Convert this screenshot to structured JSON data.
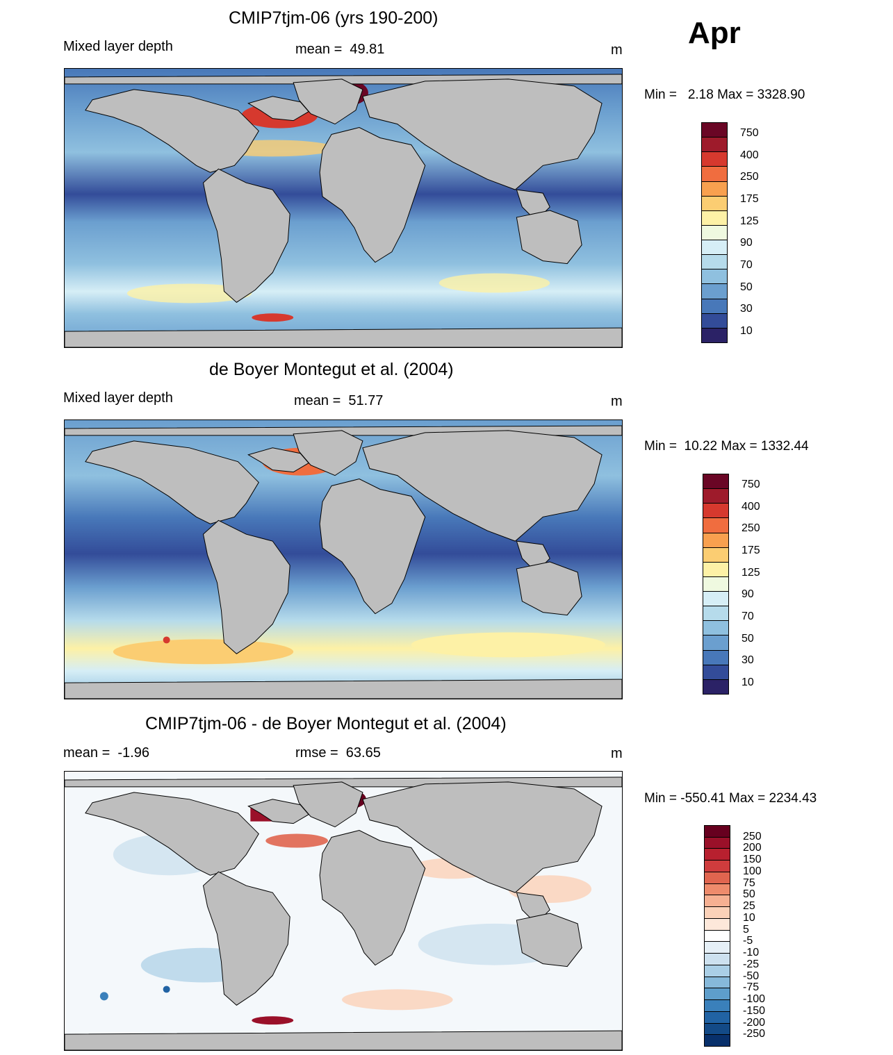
{
  "month": "Apr",
  "panels": [
    {
      "title": "CMIP7tjm-06 (yrs 190-200)",
      "left_label": "Mixed layer depth",
      "center_label": "mean =  49.81",
      "units": "m",
      "minmax": "Min =   2.18 Max = 3328.90",
      "colorbar": {
        "colors": [
          "#6a0625",
          "#9e1b2b",
          "#d6392e",
          "#f06d3f",
          "#f8a04f",
          "#fbcd72",
          "#fdf1a6",
          "#eff9e0",
          "#d6eef6",
          "#b6dbeb",
          "#8fc0df",
          "#6b9fcf",
          "#4878b9",
          "#334c99",
          "#2b2266"
        ],
        "labels": [
          "750",
          "400",
          "250",
          "175",
          "125",
          "90",
          "70",
          "50",
          "30",
          "10"
        ]
      }
    },
    {
      "title": "de Boyer Montegut et al. (2004)",
      "left_label": "Mixed layer depth",
      "center_label": "mean =  51.77",
      "units": "m",
      "minmax": "Min =  10.22 Max = 1332.44",
      "colorbar": {
        "colors": [
          "#6a0625",
          "#9e1b2b",
          "#d6392e",
          "#f06d3f",
          "#f8a04f",
          "#fbcd72",
          "#fdf1a6",
          "#eff9e0",
          "#d6eef6",
          "#b6dbeb",
          "#8fc0df",
          "#6b9fcf",
          "#4878b9",
          "#334c99",
          "#2b2266"
        ],
        "labels": [
          "750",
          "400",
          "250",
          "175",
          "125",
          "90",
          "70",
          "50",
          "30",
          "10"
        ]
      }
    },
    {
      "title": "CMIP7tjm-06 - de Boyer Montegut et al. (2004)",
      "left_label": "mean =  -1.96",
      "center_label": "rmse =  63.65",
      "units": "m",
      "minmax": "Min = -550.41 Max = 2234.43",
      "colorbar": {
        "colors": [
          "#67001f",
          "#9a1029",
          "#b8202f",
          "#cf3c3d",
          "#e0654f",
          "#ee8b6c",
          "#f6b092",
          "#fbd1b8",
          "#fde8da",
          "#ffffff",
          "#e6f0f7",
          "#cde1ef",
          "#aacfe6",
          "#86b9da",
          "#5e9ecb",
          "#3a80bb",
          "#2163a4",
          "#134a87",
          "#08306b"
        ],
        "labels": [
          "250",
          "200",
          "150",
          "100",
          "75",
          "50",
          "25",
          "10",
          "5",
          "-5",
          "-10",
          "-25",
          "-50",
          "-75",
          "-100",
          "-150",
          "-200",
          "-250"
        ]
      }
    }
  ]
}
